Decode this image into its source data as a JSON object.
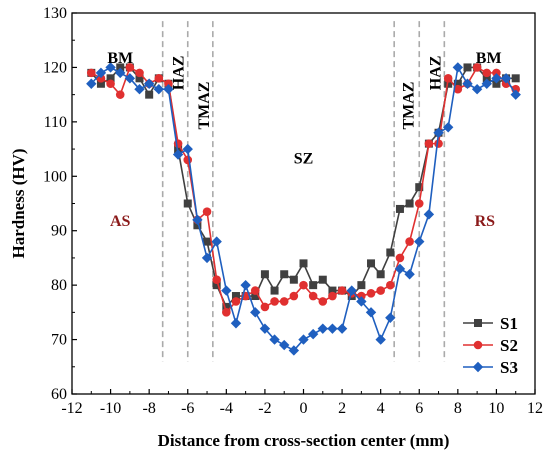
{
  "chart_data": {
    "type": "line",
    "xlabel": "Distance from cross-section center (mm)",
    "ylabel": "Hardness (HV)",
    "xlim": [
      -12,
      12
    ],
    "ylim": [
      60,
      130
    ],
    "xticks": [
      -12,
      -10,
      -8,
      -6,
      -4,
      -2,
      0,
      2,
      4,
      6,
      8,
      10,
      12
    ],
    "yticks": [
      60,
      70,
      80,
      90,
      100,
      110,
      120,
      130
    ],
    "grid": false,
    "legend_position": "bottom-right",
    "boundaries": [
      -7.3,
      -6.0,
      -4.7,
      4.7,
      6.0,
      7.3
    ],
    "region_labels": [
      {
        "text": "BM",
        "x": -9.5,
        "y": 121.5,
        "rotate": false,
        "kind": "region"
      },
      {
        "text": "HAZ",
        "x": -6.4,
        "y": 119,
        "rotate": true,
        "kind": "region"
      },
      {
        "text": "TMAZ",
        "x": -5.1,
        "y": 113,
        "rotate": true,
        "kind": "region"
      },
      {
        "text": "SZ",
        "x": 0,
        "y": 103,
        "rotate": false,
        "kind": "region"
      },
      {
        "text": "TMAZ",
        "x": 5.5,
        "y": 113,
        "rotate": true,
        "kind": "region"
      },
      {
        "text": "HAZ",
        "x": 6.9,
        "y": 119,
        "rotate": true,
        "kind": "region"
      },
      {
        "text": "BM",
        "x": 9.6,
        "y": 121.5,
        "rotate": false,
        "kind": "region"
      },
      {
        "text": "AS",
        "x": -9.5,
        "y": 91.5,
        "rotate": false,
        "kind": "side"
      },
      {
        "text": "RS",
        "x": 9.4,
        "y": 91.5,
        "rotate": false,
        "kind": "side"
      }
    ],
    "series": [
      {
        "name": "S1",
        "color": "#404040",
        "marker": "square",
        "x": [
          -11,
          -10.5,
          -10,
          -9.5,
          -9,
          -8.5,
          -8,
          -7.5,
          -7,
          -6.5,
          -6,
          -5.5,
          -5,
          -4.5,
          -4,
          -3.5,
          -3,
          -2.5,
          -2,
          -1.5,
          -1,
          -0.5,
          0,
          0.5,
          1,
          1.5,
          2,
          2.5,
          3,
          3.5,
          4,
          4.5,
          5,
          5.5,
          6,
          6.5,
          7,
          7.5,
          8,
          8.5,
          9,
          9.5,
          10,
          10.5,
          11
        ],
        "y": [
          119,
          117,
          118,
          120,
          120,
          118,
          115,
          118,
          117,
          105,
          95,
          91,
          88,
          80,
          76,
          78,
          78,
          78,
          82,
          79,
          82,
          81,
          84,
          80,
          81,
          79,
          79,
          78,
          80,
          84,
          82,
          86,
          94,
          95,
          98,
          106,
          108,
          117,
          117,
          120,
          120,
          118,
          117,
          118,
          118
        ]
      },
      {
        "name": "S2",
        "color": "#e03030",
        "marker": "circle",
        "x": [
          -11,
          -10.5,
          -10,
          -9.5,
          -9,
          -8.5,
          -8,
          -7.5,
          -7,
          -6.5,
          -6,
          -5.5,
          -5,
          -4.5,
          -4,
          -3.5,
          -3,
          -2.5,
          -2,
          -1.5,
          -1,
          -0.5,
          0,
          0.5,
          1,
          1.5,
          2,
          2.5,
          3,
          3.5,
          4,
          4.5,
          5,
          5.5,
          6,
          6.5,
          7,
          7.5,
          8,
          8.5,
          9,
          9.5,
          10,
          10.5,
          11
        ],
        "y": [
          119,
          118,
          117,
          115,
          120,
          119,
          117,
          118,
          117,
          106,
          103,
          92,
          93.5,
          81,
          75,
          77,
          78,
          79,
          76,
          77,
          77,
          78,
          80,
          78,
          77,
          78,
          79,
          78.5,
          78,
          78.5,
          79,
          80,
          85,
          88,
          95,
          106,
          106,
          118,
          116,
          117,
          120,
          119,
          119,
          117,
          116
        ]
      },
      {
        "name": "S3",
        "color": "#1f5fbf",
        "marker": "diamond",
        "x": [
          -11,
          -10.5,
          -10,
          -9.5,
          -9,
          -8.5,
          -8,
          -7.5,
          -7,
          -6.5,
          -6,
          -5.5,
          -5,
          -4.5,
          -4,
          -3.5,
          -3,
          -2.5,
          -2,
          -1.5,
          -1,
          -0.5,
          0,
          0.5,
          1,
          1.5,
          2,
          2.5,
          3,
          3.5,
          4,
          4.5,
          5,
          5.5,
          6,
          6.5,
          7,
          7.5,
          8,
          8.5,
          9,
          9.5,
          10,
          10.5,
          11
        ],
        "y": [
          117,
          119,
          120,
          119,
          118,
          116,
          117,
          116,
          116,
          104,
          105,
          92,
          85,
          88,
          79,
          73,
          80,
          75,
          72,
          70,
          69,
          68,
          70,
          71,
          72,
          72,
          72,
          79,
          77,
          75,
          70,
          74,
          83,
          82,
          88,
          93,
          108,
          109,
          120,
          117,
          116,
          117,
          118,
          118,
          115
        ]
      }
    ]
  }
}
